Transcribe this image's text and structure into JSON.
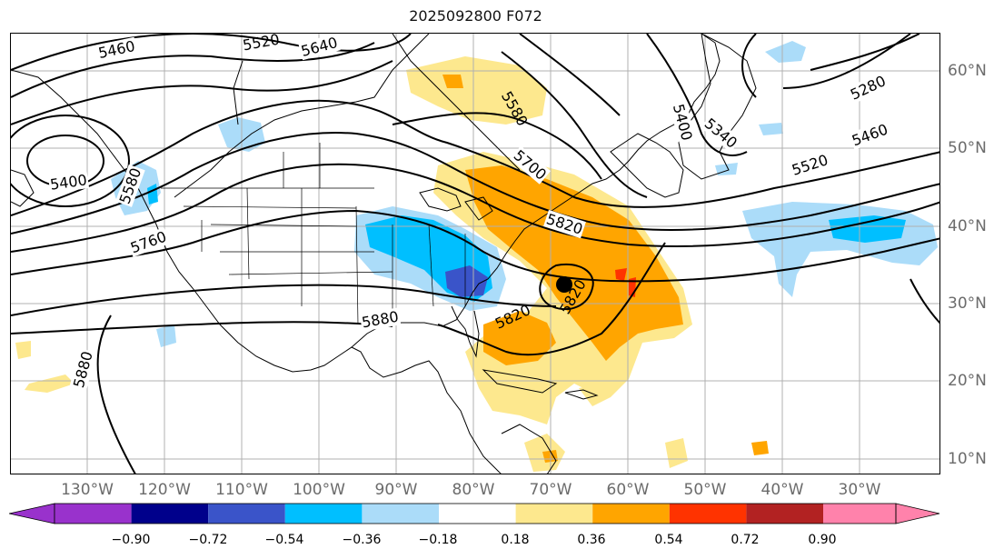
{
  "title": "2025092800 F072",
  "map": {
    "lon_labels": [
      "130°W",
      "120°W",
      "110°W",
      "100°W",
      "90°W",
      "80°W",
      "70°W",
      "60°W",
      "50°W",
      "40°W",
      "30°W"
    ],
    "lat_labels": [
      "60°N",
      "50°N",
      "40°N",
      "30°N",
      "20°N",
      "10°N"
    ],
    "contour_labels": [
      "5460",
      "5520",
      "5640",
      "5400",
      "5760",
      "5580",
      "5700",
      "5820",
      "5820",
      "5820",
      "5880",
      "5880",
      "5400",
      "5340",
      "5280",
      "5520",
      "5460",
      "5580"
    ],
    "storm_marker": "black-dot",
    "colors": {
      "light_blue": "#abdcf9",
      "medium_blue": "#00bfff",
      "deep_blue": "#3a54c9",
      "light_yellow": "#fde88e",
      "orange": "#ffa500",
      "red_orange": "#ff3300",
      "land_line": "#000000",
      "grid": "#b0b0b0"
    }
  },
  "colorbar": {
    "ticks": [
      "−0.90",
      "−0.72",
      "−0.54",
      "−0.36",
      "−0.18",
      "0.18",
      "0.36",
      "0.54",
      "0.72",
      "0.90"
    ],
    "colors": [
      "#9932cc",
      "#00008b",
      "#3a54c9",
      "#00bfff",
      "#abdcf9",
      "#ffffff",
      "#fde88e",
      "#ffa500",
      "#ff3300",
      "#b22222",
      "#ff82ab",
      "#ff82ab"
    ]
  }
}
